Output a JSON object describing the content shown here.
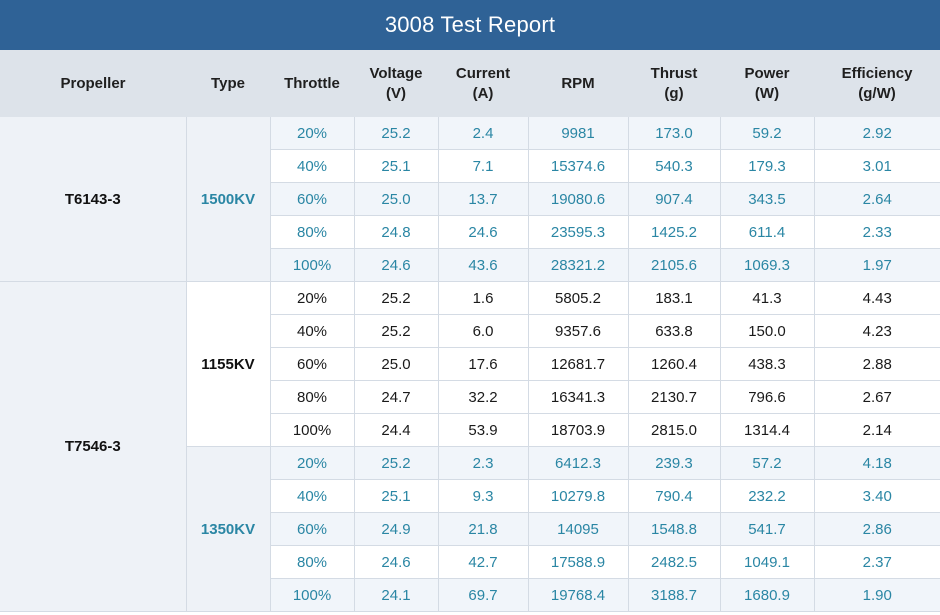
{
  "report": {
    "title": "3008 Test Report",
    "headers": {
      "propeller": "Propeller",
      "type": "Type",
      "throttle": "Throttle",
      "voltage": "Voltage",
      "voltage_unit": "(V)",
      "current": "Current",
      "current_unit": "(A)",
      "rpm": "RPM",
      "thrust": "Thrust",
      "thrust_unit": "(g)",
      "power": "Power",
      "power_unit": "(W)",
      "efficiency": "Efficiency",
      "efficiency_unit": "(g/W)"
    },
    "colors": {
      "title_bar": "#2f6296",
      "header_bg": "#dde3ea",
      "teal_text": "#2a86a4",
      "dark_text": "#1a1a1a",
      "light_blue_bg": "#eef2f7"
    },
    "groups": [
      {
        "propeller": "T6143-3",
        "types": [
          {
            "type": "1500KV",
            "style": "teal",
            "rows": [
              [
                "20%",
                "25.2",
                "2.4",
                "9981",
                "173.0",
                "59.2",
                "2.92"
              ],
              [
                "40%",
                "25.1",
                "7.1",
                "15374.6",
                "540.3",
                "179.3",
                "3.01"
              ],
              [
                "60%",
                "25.0",
                "13.7",
                "19080.6",
                "907.4",
                "343.5",
                "2.64"
              ],
              [
                "80%",
                "24.8",
                "24.6",
                "23595.3",
                "1425.2",
                "611.4",
                "2.33"
              ],
              [
                "100%",
                "24.6",
                "43.6",
                "28321.2",
                "2105.6",
                "1069.3",
                "1.97"
              ]
            ]
          }
        ]
      },
      {
        "propeller": "T7546-3",
        "types": [
          {
            "type": "1155KV",
            "style": "dark",
            "rows": [
              [
                "20%",
                "25.2",
                "1.6",
                "5805.2",
                "183.1",
                "41.3",
                "4.43"
              ],
              [
                "40%",
                "25.2",
                "6.0",
                "9357.6",
                "633.8",
                "150.0",
                "4.23"
              ],
              [
                "60%",
                "25.0",
                "17.6",
                "12681.7",
                "1260.4",
                "438.3",
                "2.88"
              ],
              [
                "80%",
                "24.7",
                "32.2",
                "16341.3",
                "2130.7",
                "796.6",
                "2.67"
              ],
              [
                "100%",
                "24.4",
                "53.9",
                "18703.9",
                "2815.0",
                "1314.4",
                "2.14"
              ]
            ]
          },
          {
            "type": "1350KV",
            "style": "teal",
            "rows": [
              [
                "20%",
                "25.2",
                "2.3",
                "6412.3",
                "239.3",
                "57.2",
                "4.18"
              ],
              [
                "40%",
                "25.1",
                "9.3",
                "10279.8",
                "790.4",
                "232.2",
                "3.40"
              ],
              [
                "60%",
                "24.9",
                "21.8",
                "14095",
                "1548.8",
                "541.7",
                "2.86"
              ],
              [
                "80%",
                "24.6",
                "42.7",
                "17588.9",
                "2482.5",
                "1049.1",
                "2.37"
              ],
              [
                "100%",
                "24.1",
                "69.7",
                "19768.4",
                "3188.7",
                "1680.9",
                "1.90"
              ]
            ]
          }
        ]
      }
    ]
  }
}
